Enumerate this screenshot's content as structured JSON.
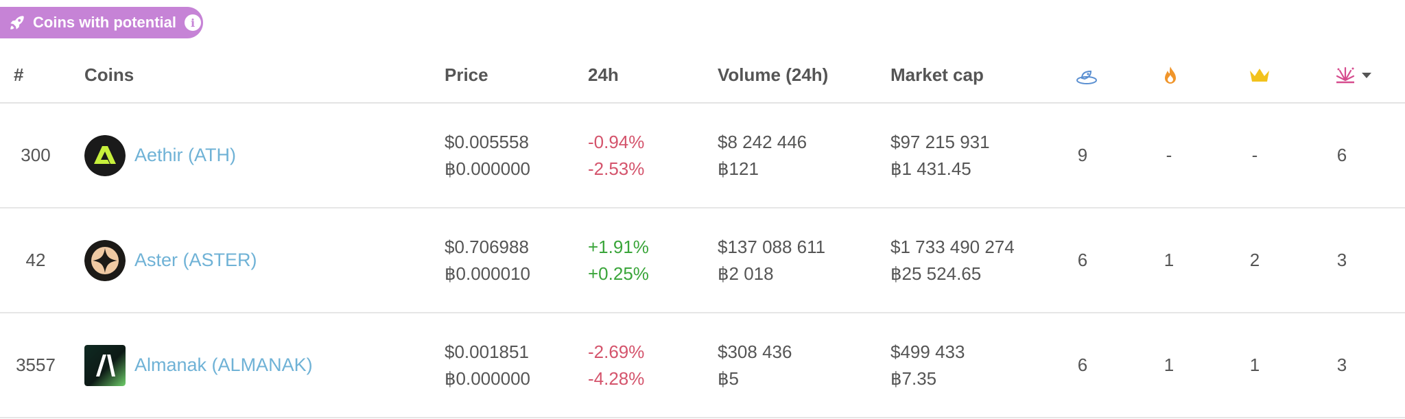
{
  "badge": {
    "label": "Coins with potential",
    "info": "i"
  },
  "header": {
    "rank": "#",
    "coins": "Coins",
    "price": "Price",
    "change": "24h",
    "volume": "Volume (24h)",
    "market_cap": "Market cap"
  },
  "icons": {
    "col1": "rocket-launch-icon",
    "col2": "fire-icon",
    "col3": "crown-icon",
    "col4": "explosion-icon",
    "sort": "caret-down-icon"
  },
  "colors": {
    "badge": "#c683d6",
    "link": "#6fb2d6",
    "negative": "#d4546c",
    "positive": "#3aa53a"
  },
  "rows": [
    {
      "rank": "300",
      "name": "Aethir (ATH)",
      "price_usd": "$0.005558",
      "price_btc": "฿0.000000",
      "change_usd": "-0.94%",
      "change_btc": "-2.53%",
      "trend": "neg",
      "volume_usd": "$8 242 446",
      "volume_btc": "฿121",
      "mcap_usd": "$97 215 931",
      "mcap_btc": "฿1 431.45",
      "s1": "9",
      "s2": "-",
      "s3": "-",
      "s4": "6"
    },
    {
      "rank": "42",
      "name": "Aster (ASTER)",
      "price_usd": "$0.706988",
      "price_btc": "฿0.000010",
      "change_usd": "+1.91%",
      "change_btc": "+0.25%",
      "trend": "pos",
      "volume_usd": "$137 088 611",
      "volume_btc": "฿2 018",
      "mcap_usd": "$1 733 490 274",
      "mcap_btc": "฿25 524.65",
      "s1": "6",
      "s2": "1",
      "s3": "2",
      "s4": "3"
    },
    {
      "rank": "3557",
      "name": "Almanak (ALMANAK)",
      "price_usd": "$0.001851",
      "price_btc": "฿0.000000",
      "change_usd": "-2.69%",
      "change_btc": "-4.28%",
      "trend": "neg",
      "volume_usd": "$308 436",
      "volume_btc": "฿5",
      "mcap_usd": "$499 433",
      "mcap_btc": "฿7.35",
      "s1": "6",
      "s2": "1",
      "s3": "1",
      "s4": "3"
    }
  ]
}
